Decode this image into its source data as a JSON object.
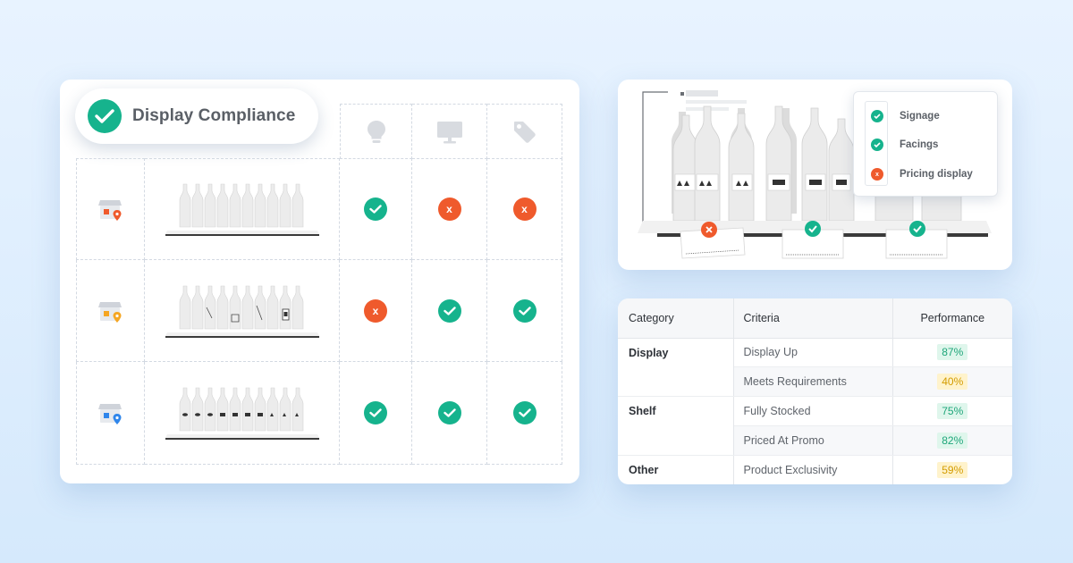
{
  "compliance": {
    "title": "Display Compliance",
    "columns": [
      {
        "icon": "lightbulb-icon"
      },
      {
        "icon": "monitor-icon"
      },
      {
        "icon": "price-tag-icon"
      }
    ],
    "rows": [
      {
        "store_icon": "store-icon",
        "pin_color": "#ef5a2c",
        "statuses": [
          "pass",
          "fail",
          "fail"
        ]
      },
      {
        "store_icon": "store-icon",
        "pin_color": "#f5a623",
        "statuses": [
          "fail",
          "pass",
          "pass"
        ]
      },
      {
        "store_icon": "store-icon",
        "pin_color": "#2f86eb",
        "statuses": [
          "pass",
          "pass",
          "pass"
        ]
      }
    ]
  },
  "shelf_photo": {
    "legend": [
      {
        "label": "Signage",
        "status": "pass"
      },
      {
        "label": "Facings",
        "status": "pass"
      },
      {
        "label": "Pricing display",
        "status": "fail"
      }
    ],
    "tag_statuses": [
      "fail",
      "pass",
      "pass"
    ]
  },
  "performance": {
    "headers": {
      "category": "Category",
      "criteria": "Criteria",
      "performance": "Performance"
    },
    "rows": [
      {
        "category": "Display",
        "criteria": "Display Up",
        "value": "87%",
        "level": "good"
      },
      {
        "category": "",
        "criteria": "Meets Requirements",
        "value": "40%",
        "level": "warn"
      },
      {
        "category": "Shelf",
        "criteria": "Fully Stocked",
        "value": "75%",
        "level": "good"
      },
      {
        "category": "",
        "criteria": "Priced At Promo",
        "value": "82%",
        "level": "good"
      },
      {
        "category": "Other",
        "criteria": "Product Exclusivity",
        "value": "59%",
        "level": "warn"
      }
    ]
  },
  "colors": {
    "pass": "#16b38d",
    "fail": "#ef5a2c",
    "good_badge": "#1fa67a",
    "warn_badge": "#d39c00"
  }
}
